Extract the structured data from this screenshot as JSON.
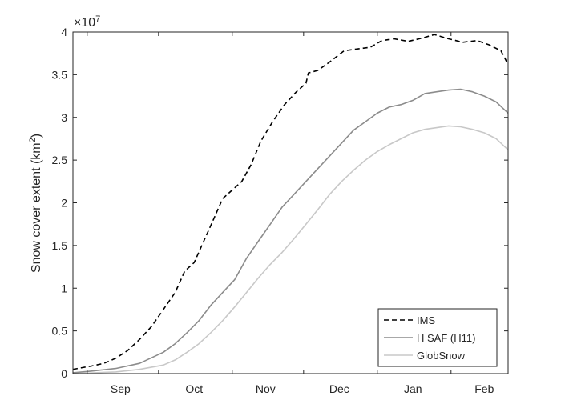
{
  "chart_data": {
    "type": "line",
    "title": "",
    "xlabel": "",
    "ylabel": "Snow cover extent (km²)",
    "ylabel_main": "Snow cover extent (km",
    "ylabel_sup": "2",
    "ylabel_close": ")",
    "y_multiplier": {
      "base": "×10",
      "exp": "7"
    },
    "ylim": [
      0,
      4
    ],
    "yticks": [
      "0",
      "0.5",
      "1",
      "1.5",
      "2",
      "2.5",
      "3",
      "3.5",
      "4"
    ],
    "xlim": [
      "2015-08-26",
      "2016-02-25"
    ],
    "xticks": [
      {
        "label": "Sep",
        "date": "2015-09-15"
      },
      {
        "label": "Oct",
        "date": "2015-10-16"
      },
      {
        "label": "Nov",
        "date": "2015-11-15"
      },
      {
        "label": "Dec",
        "date": "2015-12-16"
      },
      {
        "label": "Jan",
        "date": "2016-01-16"
      },
      {
        "label": "Feb",
        "date": "2016-02-15"
      }
    ],
    "grid": false,
    "legend_position": "bottom-right",
    "series": [
      {
        "name": "IMS",
        "style": "dashed",
        "color": "#000000",
        "points": [
          [
            "2015-08-26",
            0.05
          ],
          [
            "2015-08-30",
            0.07
          ],
          [
            "2015-09-03",
            0.09
          ],
          [
            "2015-09-08",
            0.12
          ],
          [
            "2015-09-13",
            0.18
          ],
          [
            "2015-09-18",
            0.27
          ],
          [
            "2015-09-23",
            0.4
          ],
          [
            "2015-09-28",
            0.55
          ],
          [
            "2015-10-03",
            0.75
          ],
          [
            "2015-10-08",
            0.95
          ],
          [
            "2015-10-12",
            1.2
          ],
          [
            "2015-10-16",
            1.3
          ],
          [
            "2015-10-20",
            1.55
          ],
          [
            "2015-10-24",
            1.8
          ],
          [
            "2015-10-28",
            2.05
          ],
          [
            "2015-11-01",
            2.15
          ],
          [
            "2015-11-05",
            2.25
          ],
          [
            "2015-11-09",
            2.45
          ],
          [
            "2015-11-13",
            2.72
          ],
          [
            "2015-11-18",
            2.95
          ],
          [
            "2015-11-23",
            3.15
          ],
          [
            "2015-11-28",
            3.3
          ],
          [
            "2015-12-02",
            3.4
          ],
          [
            "2015-12-03",
            3.52
          ],
          [
            "2015-12-07",
            3.55
          ],
          [
            "2015-12-12",
            3.65
          ],
          [
            "2015-12-18",
            3.78
          ],
          [
            "2015-12-23",
            3.8
          ],
          [
            "2015-12-29",
            3.82
          ],
          [
            "2016-01-03",
            3.9
          ],
          [
            "2016-01-08",
            3.92
          ],
          [
            "2016-01-14",
            3.89
          ],
          [
            "2016-01-20",
            3.93
          ],
          [
            "2016-01-25",
            3.97
          ],
          [
            "2016-01-31",
            3.92
          ],
          [
            "2016-02-06",
            3.88
          ],
          [
            "2016-02-12",
            3.9
          ],
          [
            "2016-02-17",
            3.85
          ],
          [
            "2016-02-22",
            3.78
          ],
          [
            "2016-02-25",
            3.62
          ]
        ]
      },
      {
        "name": "H SAF (H11)",
        "style": "solid",
        "color": "#8c8c8c",
        "points": [
          [
            "2015-08-26",
            0.01
          ],
          [
            "2015-09-03",
            0.03
          ],
          [
            "2015-09-13",
            0.06
          ],
          [
            "2015-09-23",
            0.12
          ],
          [
            "2015-10-03",
            0.25
          ],
          [
            "2015-10-08",
            0.35
          ],
          [
            "2015-10-13",
            0.48
          ],
          [
            "2015-10-18",
            0.62
          ],
          [
            "2015-10-23",
            0.8
          ],
          [
            "2015-10-28",
            0.95
          ],
          [
            "2015-11-02",
            1.1
          ],
          [
            "2015-11-07",
            1.35
          ],
          [
            "2015-11-12",
            1.55
          ],
          [
            "2015-11-17",
            1.75
          ],
          [
            "2015-11-22",
            1.95
          ],
          [
            "2015-11-27",
            2.1
          ],
          [
            "2015-12-02",
            2.25
          ],
          [
            "2015-12-07",
            2.4
          ],
          [
            "2015-12-12",
            2.55
          ],
          [
            "2015-12-17",
            2.7
          ],
          [
            "2015-12-22",
            2.85
          ],
          [
            "2015-12-27",
            2.95
          ],
          [
            "2016-01-01",
            3.05
          ],
          [
            "2016-01-06",
            3.12
          ],
          [
            "2016-01-11",
            3.15
          ],
          [
            "2016-01-16",
            3.2
          ],
          [
            "2016-01-21",
            3.28
          ],
          [
            "2016-01-26",
            3.3
          ],
          [
            "2016-01-31",
            3.32
          ],
          [
            "2016-02-05",
            3.33
          ],
          [
            "2016-02-10",
            3.3
          ],
          [
            "2016-02-15",
            3.25
          ],
          [
            "2016-02-20",
            3.18
          ],
          [
            "2016-02-25",
            3.05
          ]
        ]
      },
      {
        "name": "GlobSnow",
        "style": "solid",
        "color": "#c8c8c8",
        "points": [
          [
            "2015-08-26",
            0.0
          ],
          [
            "2015-09-13",
            0.02
          ],
          [
            "2015-09-23",
            0.05
          ],
          [
            "2015-10-03",
            0.1
          ],
          [
            "2015-10-08",
            0.16
          ],
          [
            "2015-10-13",
            0.25
          ],
          [
            "2015-10-18",
            0.35
          ],
          [
            "2015-10-23",
            0.48
          ],
          [
            "2015-10-28",
            0.62
          ],
          [
            "2015-11-02",
            0.78
          ],
          [
            "2015-11-07",
            0.95
          ],
          [
            "2015-11-12",
            1.12
          ],
          [
            "2015-11-17",
            1.28
          ],
          [
            "2015-11-22",
            1.42
          ],
          [
            "2015-11-27",
            1.58
          ],
          [
            "2015-12-02",
            1.75
          ],
          [
            "2015-12-07",
            1.92
          ],
          [
            "2015-12-12",
            2.1
          ],
          [
            "2015-12-17",
            2.25
          ],
          [
            "2015-12-22",
            2.38
          ],
          [
            "2015-12-27",
            2.5
          ],
          [
            "2016-01-01",
            2.6
          ],
          [
            "2016-01-06",
            2.68
          ],
          [
            "2016-01-11",
            2.75
          ],
          [
            "2016-01-16",
            2.82
          ],
          [
            "2016-01-21",
            2.86
          ],
          [
            "2016-01-26",
            2.88
          ],
          [
            "2016-01-31",
            2.9
          ],
          [
            "2016-02-05",
            2.89
          ],
          [
            "2016-02-10",
            2.86
          ],
          [
            "2016-02-15",
            2.82
          ],
          [
            "2016-02-20",
            2.75
          ],
          [
            "2016-02-25",
            2.62
          ]
        ]
      }
    ]
  }
}
